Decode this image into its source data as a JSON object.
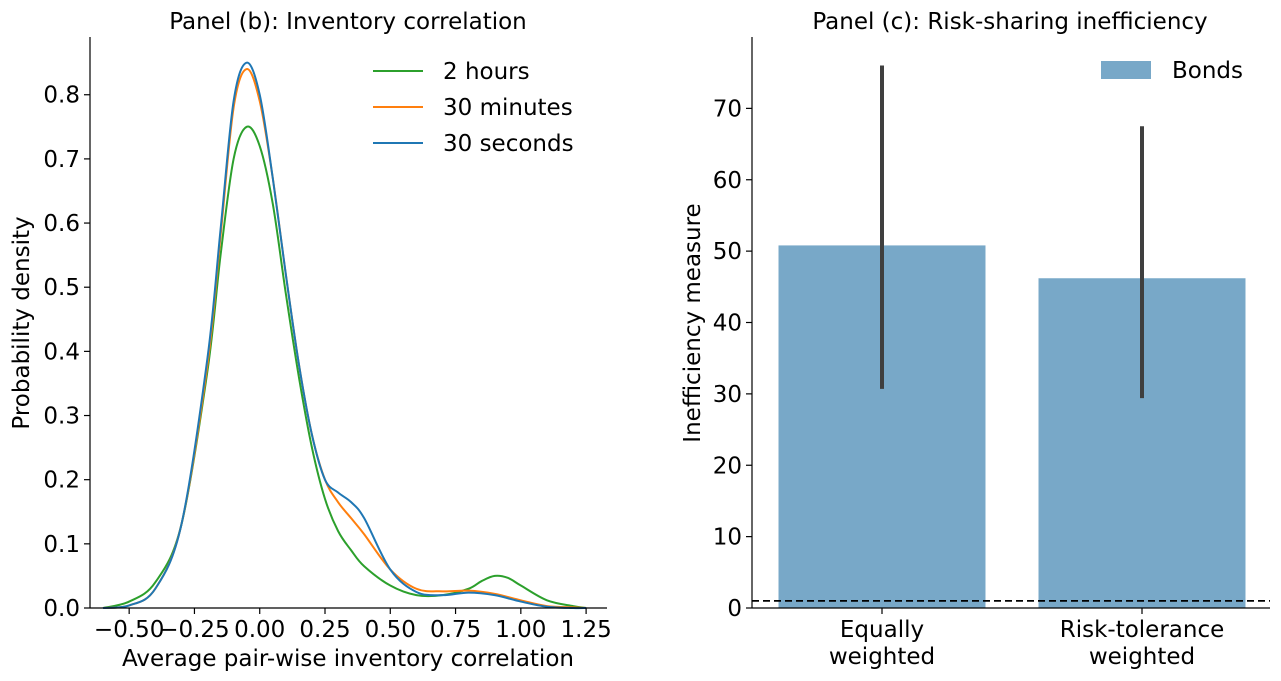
{
  "chart_data": [
    {
      "type": "line",
      "title": "Panel (b): Inventory correlation",
      "xlabel": "Average pair-wise inventory correlation",
      "ylabel": "Probability density",
      "xlim": [
        -0.65,
        1.33
      ],
      "ylim": [
        0,
        0.89
      ],
      "xticks": [
        "−0.50",
        "−0.25",
        "0.00",
        "0.25",
        "0.50",
        "0.75",
        "1.00",
        "1.25"
      ],
      "xtick_values": [
        -0.5,
        -0.25,
        0.0,
        0.25,
        0.5,
        0.75,
        1.0,
        1.25
      ],
      "yticks": [
        "0.0",
        "0.1",
        "0.2",
        "0.3",
        "0.4",
        "0.5",
        "0.6",
        "0.7",
        "0.8"
      ],
      "ytick_values": [
        0.0,
        0.1,
        0.2,
        0.3,
        0.4,
        0.5,
        0.6,
        0.7,
        0.8
      ],
      "grid": false,
      "legend_position": "top-right",
      "series": [
        {
          "name": "2 hours",
          "color": "#2ca02c",
          "x": [
            -0.6,
            -0.5,
            -0.4,
            -0.3,
            -0.2,
            -0.15,
            -0.1,
            -0.05,
            0.0,
            0.05,
            0.1,
            0.15,
            0.2,
            0.25,
            0.3,
            0.35,
            0.4,
            0.5,
            0.6,
            0.7,
            0.8,
            0.85,
            0.9,
            0.95,
            1.0,
            1.1,
            1.2,
            1.25
          ],
          "y": [
            0.0,
            0.01,
            0.04,
            0.13,
            0.37,
            0.55,
            0.7,
            0.75,
            0.72,
            0.63,
            0.49,
            0.36,
            0.25,
            0.17,
            0.12,
            0.09,
            0.065,
            0.035,
            0.02,
            0.02,
            0.03,
            0.042,
            0.05,
            0.047,
            0.035,
            0.012,
            0.003,
            0.0
          ]
        },
        {
          "name": "30 minutes",
          "color": "#ff7f0e",
          "x": [
            -0.6,
            -0.5,
            -0.4,
            -0.3,
            -0.2,
            -0.15,
            -0.1,
            -0.05,
            0.0,
            0.05,
            0.1,
            0.15,
            0.2,
            0.25,
            0.3,
            0.35,
            0.4,
            0.5,
            0.6,
            0.7,
            0.8,
            0.9,
            1.0,
            1.1,
            1.2,
            1.25
          ],
          "y": [
            0.0,
            0.004,
            0.03,
            0.13,
            0.38,
            0.58,
            0.78,
            0.84,
            0.79,
            0.67,
            0.52,
            0.38,
            0.27,
            0.2,
            0.165,
            0.14,
            0.115,
            0.06,
            0.03,
            0.026,
            0.027,
            0.022,
            0.012,
            0.003,
            0.001,
            0.0
          ]
        },
        {
          "name": "30 seconds",
          "color": "#1f77b4",
          "x": [
            -0.6,
            -0.5,
            -0.4,
            -0.3,
            -0.2,
            -0.15,
            -0.1,
            -0.05,
            0.0,
            0.05,
            0.1,
            0.15,
            0.2,
            0.25,
            0.3,
            0.35,
            0.4,
            0.5,
            0.6,
            0.7,
            0.8,
            0.9,
            1.0,
            1.1,
            1.2,
            1.25
          ],
          "y": [
            0.0,
            0.004,
            0.03,
            0.13,
            0.39,
            0.59,
            0.79,
            0.85,
            0.8,
            0.67,
            0.52,
            0.38,
            0.27,
            0.2,
            0.18,
            0.165,
            0.14,
            0.06,
            0.025,
            0.02,
            0.024,
            0.02,
            0.01,
            0.002,
            0.0,
            0.0
          ]
        }
      ]
    },
    {
      "type": "bar",
      "title": "Panel (c): Risk-sharing inefficiency",
      "xlabel": "",
      "ylabel": "Inefficiency measure",
      "categories": [
        [
          "Equally",
          "weighted"
        ],
        [
          "Risk-tolerance",
          "weighted"
        ]
      ],
      "ylim": [
        0,
        80
      ],
      "yticks": [
        "0",
        "10",
        "20",
        "30",
        "40",
        "50",
        "60",
        "70"
      ],
      "ytick_values": [
        0,
        10,
        20,
        30,
        40,
        50,
        60,
        70
      ],
      "grid": false,
      "legend_position": "top-right",
      "series": [
        {
          "name": "Bonds",
          "color": "#78a8c8",
          "values": [
            50.8,
            46.2
          ],
          "error_low": [
            30.7,
            29.4
          ],
          "error_high": [
            76.0,
            67.5
          ]
        }
      ],
      "reference_line": {
        "y": 1.0,
        "style": "dashed",
        "color": "#000000"
      },
      "errorbar_color": "#3f3f3f"
    }
  ]
}
